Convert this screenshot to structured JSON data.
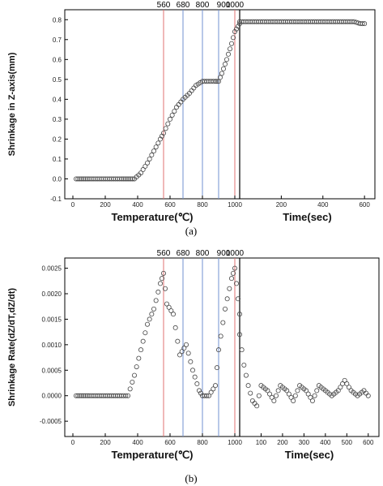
{
  "chart_data": [
    {
      "panel": "(a)",
      "type": "scatter",
      "ylabel": "Shrinkage in  Z-axis(mm)",
      "xlabel_left": "Temperature(℃)",
      "xlabel_right": "Time(sec)",
      "x_temp_range": [
        -50,
        1030
      ],
      "x_time_range": [
        0,
        650
      ],
      "ylim": [
        -0.1,
        0.85
      ],
      "x_temp_ticks": [
        "0",
        "200",
        "400",
        "600",
        "800",
        "1000"
      ],
      "x_time_ticks": [
        "200",
        "400",
        "600"
      ],
      "y_ticks": [
        "-0.1",
        "0.0",
        "0.1",
        "0.2",
        "0.3",
        "0.4",
        "0.5",
        "0.6",
        "0.7",
        "0.8"
      ],
      "markers": [
        {
          "label": "560",
          "x": 560,
          "color": "#e07070"
        },
        {
          "label": "680",
          "x": 680,
          "color": "#7090d0"
        },
        {
          "label": "800",
          "x": 800,
          "color": "#7090d0"
        },
        {
          "label": "900",
          "x": 900,
          "color": "#7090d0"
        },
        {
          "label": "1000",
          "x": 1000,
          "color": "#e07070"
        }
      ],
      "temp_series": {
        "x": [
          20,
          100,
          200,
          300,
          380,
          420,
          460,
          500,
          540,
          560,
          600,
          640,
          680,
          720,
          760,
          800,
          840,
          880,
          900,
          920,
          950,
          980,
          1000,
          1030
        ],
        "y": [
          0,
          0,
          0,
          0,
          0,
          0.03,
          0.08,
          0.14,
          0.2,
          0.23,
          0.3,
          0.36,
          0.4,
          0.43,
          0.47,
          0.49,
          0.49,
          0.49,
          0.49,
          0.53,
          0.6,
          0.68,
          0.74,
          0.78
        ]
      },
      "time_series": {
        "x": [
          0,
          50,
          100,
          150,
          200,
          250,
          300,
          350,
          400,
          450,
          500,
          550,
          580,
          600
        ],
        "y": [
          0.79,
          0.79,
          0.79,
          0.79,
          0.79,
          0.79,
          0.79,
          0.79,
          0.79,
          0.79,
          0.79,
          0.79,
          0.78,
          0.78
        ]
      }
    },
    {
      "panel": "(b)",
      "type": "scatter",
      "ylabel": "Shrinkage Rate(dZ/dT,dZ/dt)",
      "xlabel_left": "Temperature(℃)",
      "xlabel_right": "Time(sec)",
      "x_temp_range": [
        -50,
        1030
      ],
      "x_time_range": [
        0,
        650
      ],
      "ylim": [
        -0.0008,
        0.0027
      ],
      "x_temp_ticks": [
        "0",
        "200",
        "400",
        "600",
        "800",
        "1000"
      ],
      "x_time_ticks": [
        "100",
        "200",
        "300",
        "400",
        "500",
        "600"
      ],
      "y_ticks": [
        "-0.0005",
        "0.0000",
        "0.0005",
        "0.0010",
        "0.0015",
        "0.0020",
        "0.0025"
      ],
      "markers": [
        {
          "label": "560",
          "x": 560,
          "color": "#e07070"
        },
        {
          "label": "680",
          "x": 680,
          "color": "#7090d0"
        },
        {
          "label": "800",
          "x": 800,
          "color": "#7090d0"
        },
        {
          "label": "900",
          "x": 900,
          "color": "#7090d0"
        },
        {
          "label": "1000",
          "x": 1000,
          "color": "#e07070"
        }
      ],
      "temp_series": {
        "x": [
          20,
          100,
          200,
          300,
          340,
          380,
          420,
          460,
          500,
          540,
          560,
          580,
          620,
          660,
          700,
          740,
          780,
          800,
          840,
          880,
          900,
          940,
          980,
          1000,
          1030
        ],
        "y": [
          0,
          0,
          0,
          0,
          0,
          0.0004,
          0.0009,
          0.0014,
          0.0017,
          0.0022,
          0.0024,
          0.0018,
          0.0016,
          0.0008,
          0.001,
          0.0005,
          0.0001,
          0,
          0,
          0.0002,
          0.0009,
          0.0017,
          0.0023,
          0.0025,
          0.0016
        ]
      },
      "time_series": {
        "x": [
          0,
          20,
          40,
          60,
          80,
          100,
          130,
          160,
          190,
          220,
          250,
          280,
          310,
          340,
          370,
          400,
          430,
          460,
          490,
          520,
          550,
          580,
          600
        ],
        "y": [
          0.0012,
          0.0006,
          0.0002,
          -0.0001,
          -0.0002,
          0.0002,
          0.0001,
          -0.0001,
          0.0002,
          0.0001,
          -0.0001,
          0.0002,
          0.0001,
          -0.0001,
          0.0002,
          0.0001,
          0,
          0.0001,
          0.0003,
          0.0001,
          0,
          0.0001,
          0
        ]
      }
    }
  ],
  "captions": [
    "(a)",
    "(b)"
  ]
}
